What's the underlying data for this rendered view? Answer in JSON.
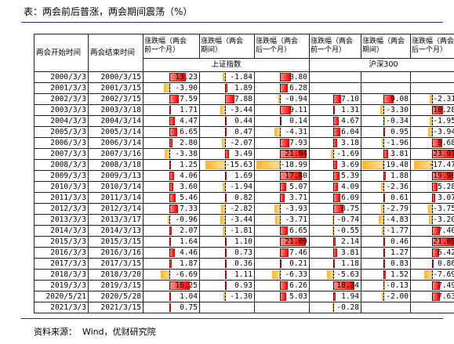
{
  "chart_data": {
    "type": "table",
    "title": "表：两会前后普涨，两会期间震荡（%）",
    "header": {
      "start_label": "两会开始时间",
      "end_label": "两会结束时间",
      "columns": [
        "涨跌幅（两会前一个月）",
        "涨跌幅（两会期间）",
        "涨跌幅（两会后一个月）",
        "涨跌幅（两会前一个月）",
        "涨跌幅（两会期间）",
        "涨跌幅（两会后一个月）"
      ],
      "groups": [
        "上证指数",
        "沪深300"
      ]
    },
    "data_bars": {
      "positive": "#ff0000",
      "negative": "#ffb628"
    },
    "rows": [
      {
        "start": "2000/3/3",
        "end": "2000/3/15",
        "values": [
          13.23,
          -1.84,
          8.8,
          null,
          null,
          null
        ]
      },
      {
        "start": "2001/3/3",
        "end": "2001/3/15",
        "values": [
          -3.9,
          1.89,
          6.28,
          null,
          null,
          null
        ]
      },
      {
        "start": "2002/3/3",
        "end": "2002/3/15",
        "values": [
          7.59,
          7.88,
          -0.94,
          7.1,
          9.08,
          -2.31
        ]
      },
      {
        "start": "2003/3/3",
        "end": "2003/3/18",
        "values": [
          1.71,
          -3.44,
          9.11,
          1.31,
          -3.3,
          10.28
        ]
      },
      {
        "start": "2004/3/3",
        "end": "2004/3/14",
        "values": [
          4.47,
          0.44,
          0.14,
          4.67,
          -0.34,
          -1.95
        ]
      },
      {
        "start": "2005/3/3",
        "end": "2005/3/14",
        "values": [
          6.65,
          0.47,
          -4.31,
          6.04,
          0.95,
          -3.94
        ]
      },
      {
        "start": "2006/3/3",
        "end": "2006/3/14",
        "values": [
          2.8,
          -2.07,
          7.93,
          3.18,
          -1.96,
          9.68
        ]
      },
      {
        "start": "2007/3/3",
        "end": "2007/3/16",
        "values": [
          -3.38,
          3.49,
          21.84,
          -1.69,
          3.81,
          23.07
        ]
      },
      {
        "start": "2008/3/3",
        "end": "2008/3/18",
        "values": [
          1.25,
          -15.63,
          -18.99,
          3.69,
          -19.48,
          -17.47
        ]
      },
      {
        "start": "2009/3/3",
        "end": "2009/3/13",
        "values": [
          4.06,
          1.69,
          17.8,
          5.39,
          1.88,
          19.9
        ]
      },
      {
        "start": "2010/3/3",
        "end": "2010/3/14",
        "values": [
          3.6,
          -1.94,
          5.07,
          4.09,
          -2.36,
          5.28
        ]
      },
      {
        "start": "2011/3/3",
        "end": "2011/3/14",
        "values": [
          5.46,
          0.82,
          3.71,
          6.09,
          0.61,
          3.07
        ]
      },
      {
        "start": "2012/3/3",
        "end": "2012/3/14",
        "values": [
          7.33,
          -2.82,
          -3.93,
          8.75,
          -2.79,
          -3.75
        ]
      },
      {
        "start": "2013/3/3",
        "end": "2013/3/17",
        "values": [
          -0.96,
          -3.44,
          -3.71,
          -0.74,
          -4.83,
          -3.2
        ]
      },
      {
        "start": "2014/3/3",
        "end": "2014/3/13",
        "values": [
          2.07,
          -1.81,
          6.65,
          -0.55,
          -1.77,
          7.4
        ]
      },
      {
        "start": "2015/3/3",
        "end": "2015/3/15",
        "values": [
          1.64,
          1.1,
          21.09,
          2.14,
          0.46,
          21.09
        ]
      },
      {
        "start": "2016/3/3",
        "end": "2016/3/16",
        "values": [
          4.46,
          0.73,
          7.46,
          3.81,
          1.27,
          6.42
        ]
      },
      {
        "start": "2017/3/3",
        "end": "2017/3/15",
        "values": [
          1.87,
          0.36,
          0.21,
          1.18,
          0.83,
          0.86
        ]
      },
      {
        "start": "2018/3/3",
        "end": "2018/3/20",
        "values": [
          -6.69,
          1.11,
          -6.33,
          -5.63,
          1.52,
          -7.69
        ]
      },
      {
        "start": "2019/3/3",
        "end": "2019/3/15",
        "values": [
          16.25,
          0.93,
          6.26,
          18.34,
          -0.13,
          7.49
        ]
      },
      {
        "start": "2020/5/21",
        "end": "2020/5/28",
        "values": [
          1.04,
          -1.3,
          5.03,
          1.94,
          -2.0,
          7.63
        ]
      },
      {
        "start": "2021/3/3",
        "end": "2021/3/15",
        "values": [
          0.75,
          null,
          null,
          -0.28,
          null,
          null
        ]
      }
    ]
  },
  "footer": {
    "source": "资料来源：  Wind，优财研究院"
  }
}
